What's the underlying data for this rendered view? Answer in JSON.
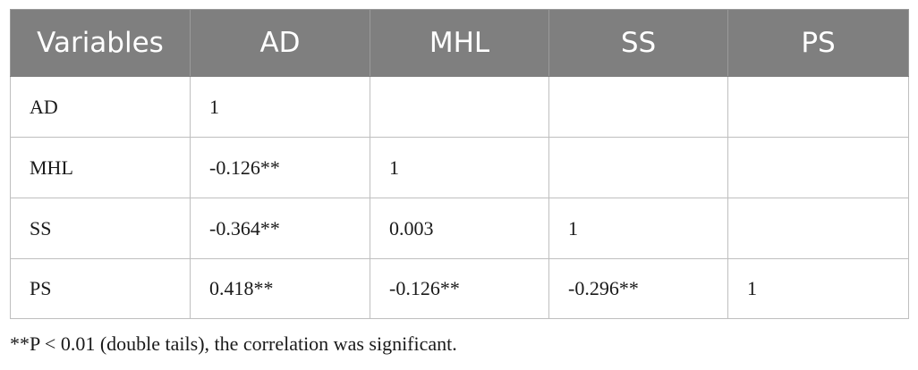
{
  "table": {
    "headers": [
      "Variables",
      "AD",
      "MHL",
      "SS",
      "PS"
    ],
    "rows": [
      [
        "AD",
        "1",
        "",
        "",
        ""
      ],
      [
        "MHL",
        "-0.126**",
        "1",
        "",
        ""
      ],
      [
        "SS",
        "-0.364**",
        "0.003",
        "1",
        ""
      ],
      [
        "PS",
        "0.418**",
        "-0.126**",
        "-0.296**",
        "1"
      ]
    ]
  },
  "footnote": "**P < 0.01 (double tails), the correlation was significant."
}
